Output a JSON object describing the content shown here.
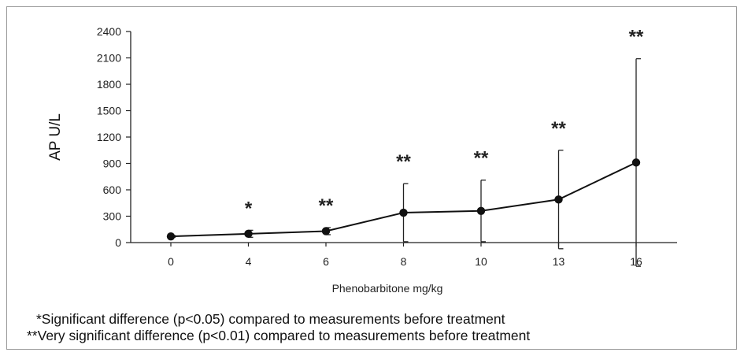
{
  "chart_data": {
    "type": "line",
    "xlabel": "Phenobarbitone mg/kg",
    "ylabel": "AP U/L",
    "ylim": [
      0,
      2400
    ],
    "yticks": [
      0,
      300,
      600,
      900,
      1200,
      1500,
      1800,
      2100,
      2400
    ],
    "categories": [
      "0",
      "4",
      "6",
      "8",
      "10",
      "13",
      "16"
    ],
    "series": [
      {
        "values": [
          70,
          100,
          130,
          340,
          360,
          490,
          910
        ],
        "error": [
          10,
          40,
          40,
          330,
          350,
          560,
          1180
        ]
      }
    ],
    "significance": [
      "",
      "*",
      "**",
      "**",
      "**",
      "**",
      "**"
    ],
    "grid": false,
    "legend": "none"
  },
  "footnotes": [
    "*Significant difference (p<0.05) compared to measurements before treatment",
    "**Very significant difference (p<0.01) compared to measurements before treatment"
  ]
}
